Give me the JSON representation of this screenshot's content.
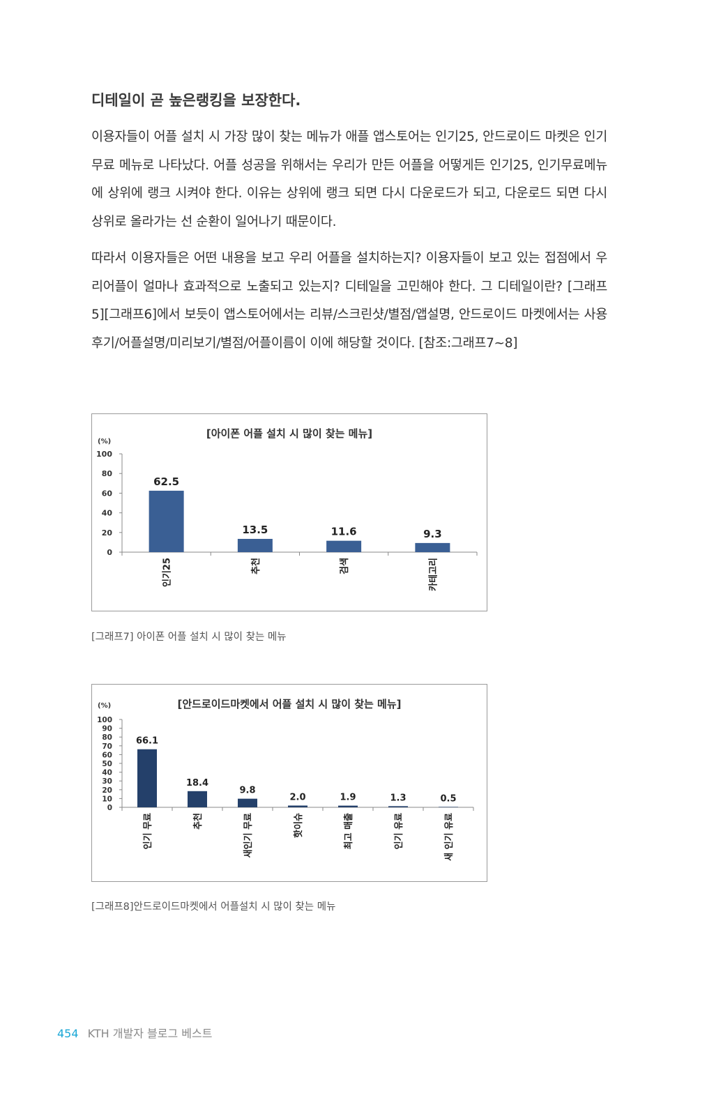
{
  "heading": "디테일이 곧 높은랭킹을 보장한다.",
  "paragraphs": [
    "이용자들이 어플 설치 시 가장 많이 찾는 메뉴가 애플 앱스토어는 인기25, 안드로이드 마켓은 인기무료 메뉴로 나타났다. 어플 성공을 위해서는 우리가 만든 어플을 어떻게든 인기25, 인기무료메뉴에 상위에 랭크 시켜야 한다. 이유는 상위에 랭크 되면 다시 다운로드가 되고, 다운로드 되면 다시 상위로 올라가는 선 순환이 일어나기 때문이다.",
    "따라서 이용자들은 어떤 내용을 보고 우리 어플을 설치하는지? 이용자들이 보고 있는 접점에서 우리어플이 얼마나 효과적으로 노출되고 있는지? 디테일을 고민해야 한다. 그 디테일이란? [그래프5][그래프6]에서 보듯이 앱스토어에서는 리뷰/스크린샷/별점/앱설명, 안드로이드 마켓에서는 사용후기/어플설명/미리보기/별점/어플이름이 이에 해당할 것이다. [참조:그래프7~8]"
  ],
  "chart_data": [
    {
      "type": "bar",
      "title": "[아이폰 어플 설치 시 많이 찾는 메뉴]",
      "ylabel": "(%)",
      "categories": [
        "인기25",
        "추천",
        "검색",
        "카테고리"
      ],
      "values": [
        62.5,
        13.5,
        11.6,
        9.3
      ],
      "value_labels": [
        "62.5",
        "13.5",
        "11.6",
        "9.3"
      ],
      "ylim": [
        0,
        100
      ],
      "yticks": [
        "0",
        "20",
        "40",
        "60",
        "80",
        "100"
      ],
      "ytick_values": [
        0,
        20,
        40,
        60,
        80,
        100
      ],
      "bar_color": "#3a5f94",
      "grid": false,
      "legend": "none"
    },
    {
      "type": "bar",
      "title": "[안드로이드마켓에서 어플 설치 시 많이 찾는 메뉴]",
      "ylabel": "(%)",
      "categories": [
        "인기 무료",
        "추천",
        "새인기 무료",
        "핫이슈",
        "최고 매출",
        "인기 유료",
        "새 인기 유료"
      ],
      "values": [
        66.1,
        18.4,
        9.8,
        2.0,
        1.9,
        1.3,
        0.5
      ],
      "value_labels": [
        "66.1",
        "18.4",
        "9.8",
        "2.0",
        "1.9",
        "1.3",
        "0.5"
      ],
      "ylim": [
        0,
        100
      ],
      "yticks": [
        "0",
        "10",
        "20",
        "30",
        "40",
        "50",
        "60",
        "70",
        "80",
        "90",
        "100"
      ],
      "ytick_values": [
        0,
        10,
        20,
        30,
        40,
        50,
        60,
        70,
        80,
        90,
        100
      ],
      "bar_color": "#24406a",
      "grid": false,
      "legend": "none"
    }
  ],
  "captions": [
    "[그래프7] 아이폰 어플 설치 시 많이 찾는 메뉴",
    "[그래프8]안드로이드마켓에서 어플설치 시 많이 찾는 메뉴"
  ],
  "footer": {
    "page_number": "454",
    "book_title": "KTH 개발자 블로그 베스트"
  }
}
